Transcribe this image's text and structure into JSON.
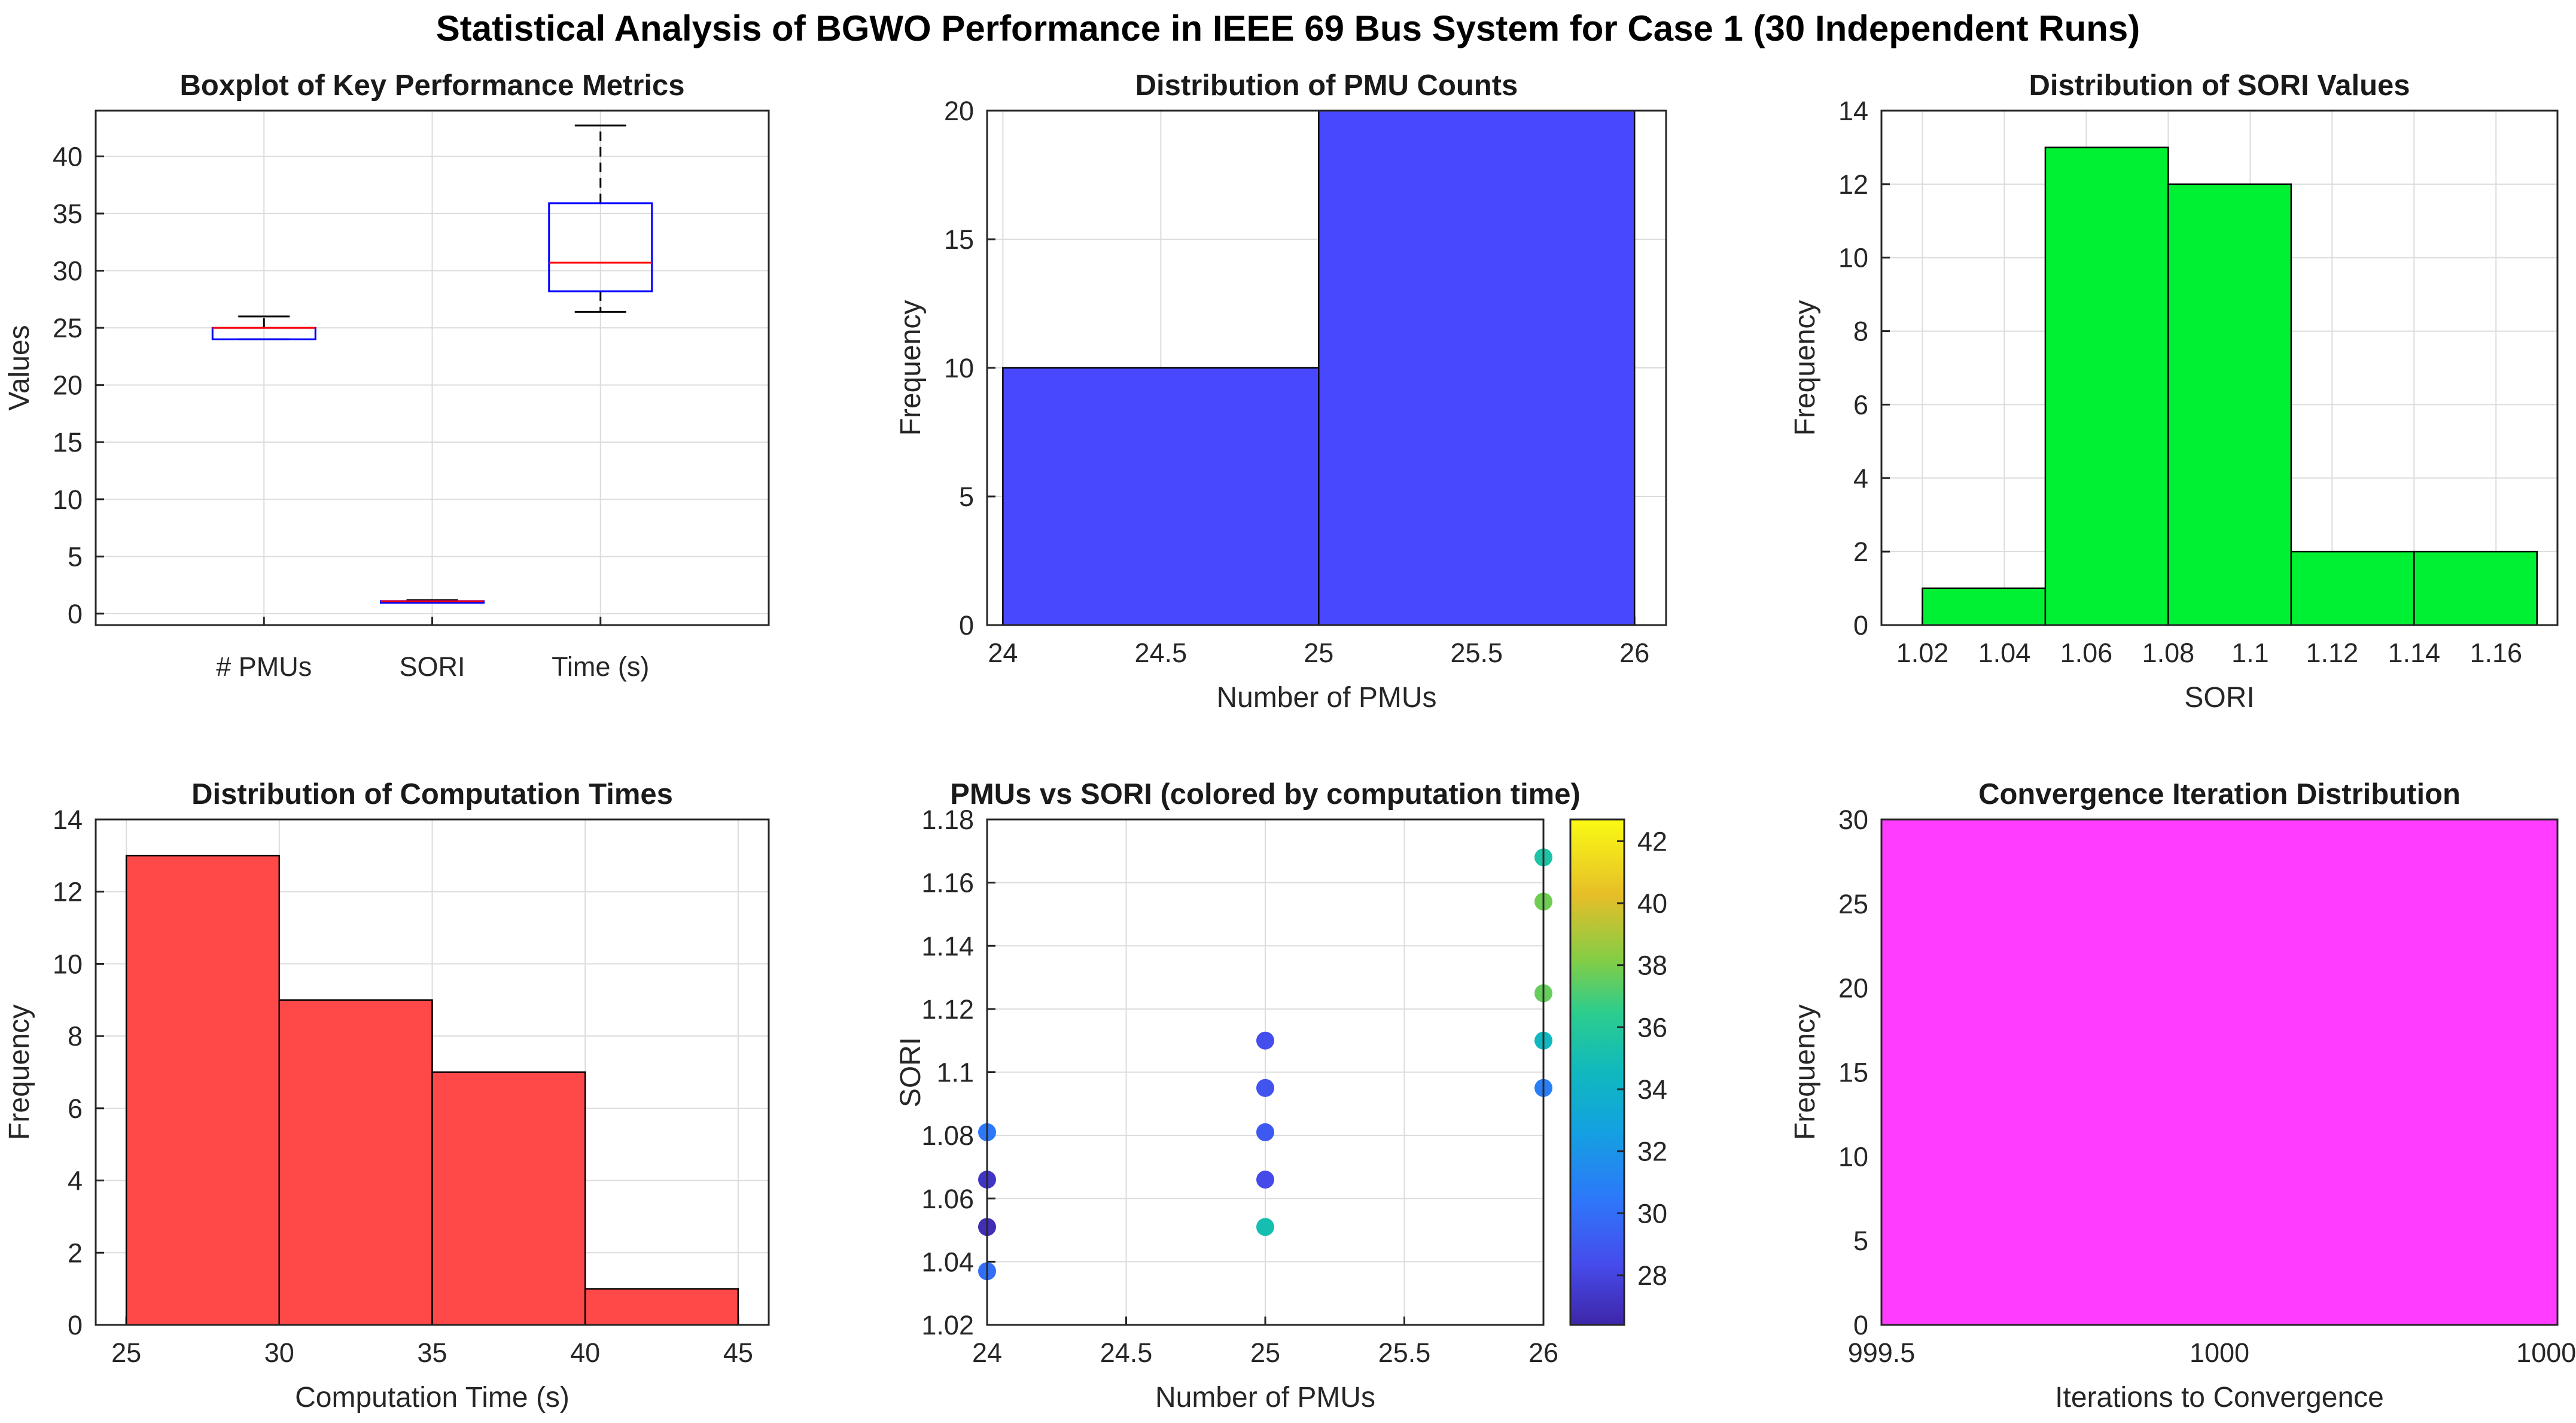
{
  "figure": {
    "title": "Statistical Analysis of BGWO Performance in IEEE 69 Bus System for Case 1 (30 Independent Runs)"
  },
  "chart_data": [
    {
      "id": "boxplot",
      "type": "boxplot",
      "title": "Boxplot of Key Performance Metrics",
      "xlabel": "",
      "ylabel": "Values",
      "ylim": [
        -1,
        44
      ],
      "yticks": [
        0,
        5,
        10,
        15,
        20,
        25,
        30,
        35,
        40
      ],
      "categories": [
        "# PMUs",
        "SORI",
        "Time (s)"
      ],
      "boxes": [
        {
          "category": "# PMUs",
          "min": 24,
          "q1": 24,
          "median": 25,
          "q3": 25,
          "max": 26
        },
        {
          "category": "SORI",
          "min": 1.04,
          "q1": 1.06,
          "median": 1.08,
          "q3": 1.1,
          "max": 1.17
        },
        {
          "category": "Time (s)",
          "min": 26.4,
          "q1": 28.2,
          "median": 30.7,
          "q3": 35.9,
          "max": 42.7
        }
      ],
      "colors": {
        "box": "#0000ff",
        "median": "#ff0000",
        "whisker": "#000000"
      }
    },
    {
      "id": "pmu-hist",
      "type": "bar",
      "title": "Distribution of PMU Counts",
      "xlabel": "Number of PMUs",
      "ylabel": "Frequency",
      "xlim": [
        23.95,
        26.1
      ],
      "ylim": [
        0,
        20
      ],
      "xticks": [
        24,
        24.5,
        25,
        25.5,
        26
      ],
      "yticks": [
        0,
        5,
        10,
        15,
        20
      ],
      "bins": [
        [
          24,
          25,
          10
        ],
        [
          25,
          26,
          20
        ]
      ],
      "color": "#4848ff"
    },
    {
      "id": "sori-hist",
      "type": "bar",
      "title": "Distribution of SORI Values",
      "xlabel": "SORI",
      "ylabel": "Frequency",
      "xlim": [
        1.01,
        1.175
      ],
      "ylim": [
        0,
        14
      ],
      "xticks": [
        1.02,
        1.04,
        1.06,
        1.08,
        1.1,
        1.12,
        1.14,
        1.16
      ],
      "yticks": [
        0,
        2,
        4,
        6,
        8,
        10,
        12,
        14
      ],
      "bins": [
        [
          1.02,
          1.05,
          1
        ],
        [
          1.05,
          1.08,
          13
        ],
        [
          1.08,
          1.11,
          12
        ],
        [
          1.11,
          1.14,
          2
        ],
        [
          1.14,
          1.17,
          2
        ]
      ],
      "color": "#00f033"
    },
    {
      "id": "time-hist",
      "type": "bar",
      "title": "Distribution of Computation Times",
      "xlabel": "Computation Time (s)",
      "ylabel": "Frequency",
      "xlim": [
        24,
        46
      ],
      "ylim": [
        0,
        14
      ],
      "xticks": [
        25,
        30,
        35,
        40,
        45
      ],
      "yticks": [
        0,
        2,
        4,
        6,
        8,
        10,
        12,
        14
      ],
      "bins": [
        [
          25,
          30,
          13
        ],
        [
          30,
          35,
          9
        ],
        [
          35,
          40,
          7
        ],
        [
          40,
          45,
          1
        ]
      ],
      "color": "#ff4848"
    },
    {
      "id": "scatter",
      "type": "scatter",
      "title": "PMUs vs SORI (colored by computation time)",
      "xlabel": "Number of PMUs",
      "ylabel": "SORI",
      "xlim": [
        24,
        26
      ],
      "ylim": [
        1.02,
        1.18
      ],
      "xticks": [
        24,
        24.5,
        25,
        25.5,
        26
      ],
      "yticks": [
        1.02,
        1.04,
        1.06,
        1.08,
        1.1,
        1.12,
        1.14,
        1.16,
        1.18
      ],
      "colorbar": {
        "range": [
          26.4,
          42.7
        ],
        "ticks": [
          28,
          30,
          32,
          34,
          36,
          38,
          40,
          42
        ]
      },
      "points": [
        {
          "x": 24,
          "y": 1.081,
          "c": 30.5
        },
        {
          "x": 24,
          "y": 1.066,
          "c": 27.2
        },
        {
          "x": 24,
          "y": 1.051,
          "c": 26.8
        },
        {
          "x": 24,
          "y": 1.037,
          "c": 30.0
        },
        {
          "x": 25,
          "y": 1.11,
          "c": 28.5
        },
        {
          "x": 25,
          "y": 1.095,
          "c": 28.8
        },
        {
          "x": 25,
          "y": 1.081,
          "c": 29.0
        },
        {
          "x": 25,
          "y": 1.066,
          "c": 28.3
        },
        {
          "x": 25,
          "y": 1.051,
          "c": 35.0
        },
        {
          "x": 26,
          "y": 1.168,
          "c": 35.5
        },
        {
          "x": 26,
          "y": 1.154,
          "c": 37.8
        },
        {
          "x": 26,
          "y": 1.125,
          "c": 37.6
        },
        {
          "x": 26,
          "y": 1.11,
          "c": 34.5
        },
        {
          "x": 26,
          "y": 1.095,
          "c": 30.8
        }
      ]
    },
    {
      "id": "conv-hist",
      "type": "bar",
      "title": "Convergence Iteration Distribution",
      "xlabel": "Iterations to Convergence",
      "ylabel": "Frequency",
      "xlim": [
        999.5,
        1000.5
      ],
      "ylim": [
        0,
        30
      ],
      "xticks": [
        999.5,
        1000,
        1000.5
      ],
      "yticks": [
        0,
        5,
        10,
        15,
        20,
        25,
        30
      ],
      "bins": [
        [
          999.5,
          1000.5,
          30
        ]
      ],
      "color": "#ff3cff"
    }
  ]
}
